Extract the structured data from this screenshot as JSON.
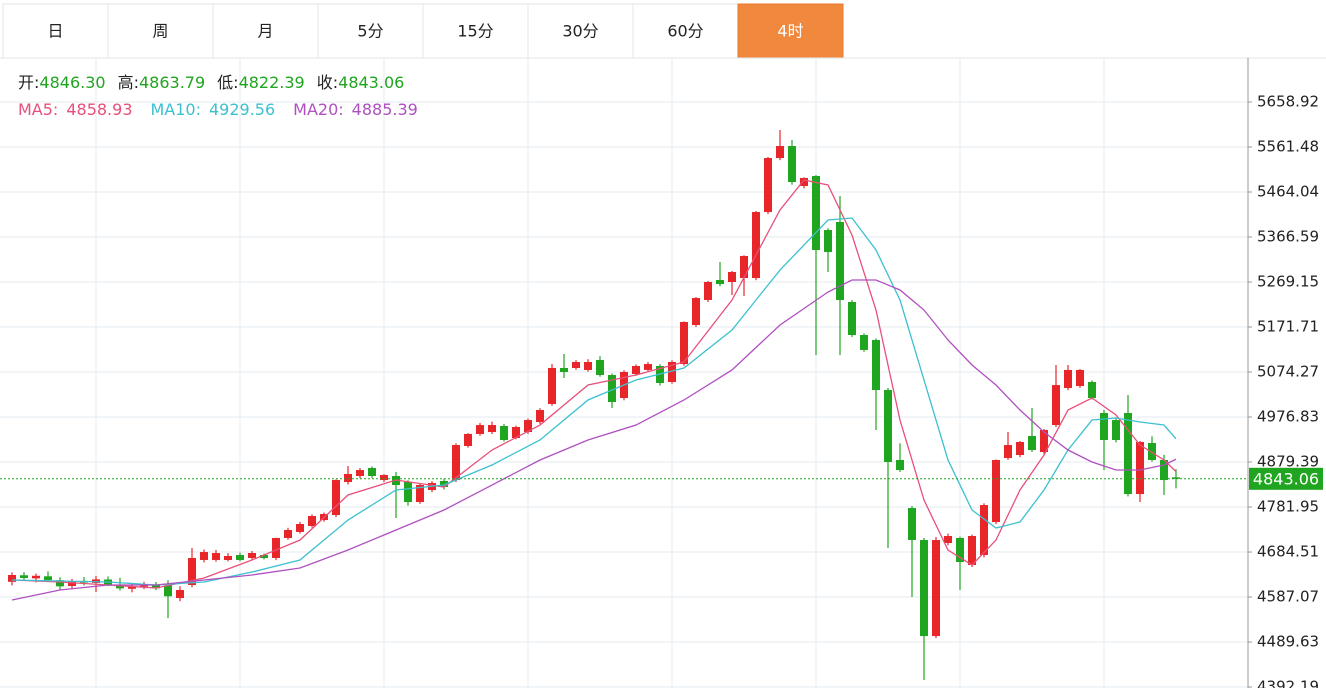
{
  "tabs": [
    "日",
    "周",
    "月",
    "5分",
    "15分",
    "30分",
    "60分",
    "4时"
  ],
  "active_tab": 7,
  "chart_data": {
    "type": "candlestick",
    "info": [
      {
        "label": "开:",
        "value": "4846.30"
      },
      {
        "label": "高:",
        "value": "4863.79"
      },
      {
        "label": "低:",
        "value": "4822.39"
      },
      {
        "label": "收:",
        "value": "4843.06"
      }
    ],
    "up_color": "#e8262a",
    "down_color": "#1fa51f",
    "candles": [
      [
        4620.0,
        4640.5,
        4612.3,
        4634.8
      ],
      [
        4634.2,
        4641.0,
        4624.5,
        4628.3
      ],
      [
        4627.5,
        4637.8,
        4618.9,
        4633.1
      ],
      [
        4632.0,
        4642.6,
        4620.3,
        4624.0
      ],
      [
        4623.5,
        4629.8,
        4602.5,
        4610.2
      ],
      [
        4611.0,
        4626.4,
        4604.8,
        4621.7
      ],
      [
        4622.0,
        4630.5,
        4612.1,
        4618.4
      ],
      [
        4617.6,
        4632.9,
        4598.0,
        4625.3
      ],
      [
        4625.0,
        4631.6,
        4610.8,
        4613.5
      ],
      [
        4614.0,
        4628.7,
        4601.2,
        4605.8
      ],
      [
        4604.9,
        4616.2,
        4597.3,
        4609.1
      ],
      [
        4609.5,
        4620.0,
        4604.0,
        4614.2
      ],
      [
        4613.8,
        4619.5,
        4602.1,
        4606.0
      ],
      [
        4612.5,
        4623.4,
        4541.6,
        4588.7
      ],
      [
        4584.9,
        4610.3,
        4578.0,
        4602.3
      ],
      [
        4613.1,
        4693.2,
        4608.0,
        4671.6
      ],
      [
        4667.3,
        4690.1,
        4662.0,
        4684.5
      ],
      [
        4667.3,
        4689.0,
        4663.5,
        4682.4
      ],
      [
        4667.3,
        4682.0,
        4664.1,
        4675.9
      ],
      [
        4678.1,
        4683.3,
        4664.4,
        4667.3
      ],
      [
        4671.6,
        4686.7,
        4668.0,
        4682.4
      ],
      [
        4678.1,
        4681.0,
        4668.5,
        4671.6
      ],
      [
        4671.6,
        4715.5,
        4667.0,
        4714.9
      ],
      [
        4714.9,
        4737.0,
        4711.0,
        4732.2
      ],
      [
        4727.9,
        4749.8,
        4724.5,
        4745.2
      ],
      [
        4740.9,
        4766.0,
        4737.5,
        4762.5
      ],
      [
        4753.8,
        4770.2,
        4750.0,
        4766.8
      ],
      [
        4764.7,
        4842.0,
        4760.0,
        4840.4
      ],
      [
        4836.1,
        4870.7,
        4830.5,
        4853.5
      ],
      [
        4849.1,
        4866.5,
        4844.0,
        4862.1
      ],
      [
        4866.5,
        4870.0,
        4845.0,
        4849.1
      ],
      [
        4840.4,
        4853.0,
        4836.0,
        4851.3
      ],
      [
        4849.1,
        4858.0,
        4758.2,
        4829.6
      ],
      [
        4836.1,
        4840.0,
        4785.0,
        4792.8
      ],
      [
        4792.8,
        4832.5,
        4789.0,
        4829.6
      ],
      [
        4818.8,
        4838.0,
        4814.0,
        4834.0
      ],
      [
        4838.3,
        4843.5,
        4820.0,
        4825.3
      ],
      [
        4840.4,
        4920.0,
        4836.0,
        4916.2
      ],
      [
        4914.1,
        4942.0,
        4910.5,
        4940.1
      ],
      [
        4940.1,
        4964.0,
        4936.5,
        4959.5
      ],
      [
        4944.4,
        4966.8,
        4940.0,
        4959.5
      ],
      [
        4957.4,
        4962.0,
        4924.0,
        4927.1
      ],
      [
        4931.4,
        4958.3,
        4928.5,
        4955.2
      ],
      [
        4944.4,
        4973.5,
        4940.0,
        4970.3
      ],
      [
        4966.0,
        4995.8,
        4962.0,
        4992.0
      ],
      [
        5005.0,
        5091.6,
        5001.0,
        5083.0
      ],
      [
        5083.0,
        5113.3,
        5061.3,
        5074.4
      ],
      [
        5083.0,
        5100.0,
        5079.0,
        5096.0
      ],
      [
        5078.7,
        5102.0,
        5075.0,
        5096.0
      ],
      [
        5100.3,
        5108.5,
        5064.0,
        5067.8
      ],
      [
        5067.8,
        5071.0,
        4996.3,
        5009.3
      ],
      [
        5018.0,
        5078.0,
        5013.0,
        5074.4
      ],
      [
        5070.0,
        5090.5,
        5066.0,
        5087.3
      ],
      [
        5078.7,
        5096.0,
        5075.0,
        5091.6
      ],
      [
        5087.3,
        5091.0,
        5045.0,
        5050.5
      ],
      [
        5052.7,
        5099.8,
        5049.0,
        5096.0
      ],
      [
        5091.6,
        5184.0,
        5088.0,
        5182.6
      ],
      [
        5176.1,
        5236.7,
        5172.0,
        5234.5
      ],
      [
        5230.2,
        5271.5,
        5226.0,
        5269.2
      ],
      [
        5273.5,
        5312.5,
        5260.0,
        5264.8
      ],
      [
        5269.2,
        5293.0,
        5241.0,
        5290.8
      ],
      [
        5277.8,
        5327.0,
        5238.8,
        5325.5
      ],
      [
        5277.8,
        5423.0,
        5273.0,
        5420.7
      ],
      [
        5420.7,
        5540.0,
        5416.0,
        5537.6
      ],
      [
        5537.6,
        5598.3,
        5533.0,
        5563.6
      ],
      [
        5563.6,
        5576.6,
        5480.0,
        5485.7
      ],
      [
        5477.1,
        5496.0,
        5472.0,
        5494.4
      ],
      [
        5498.7,
        5500.5,
        5111.1,
        5338.5
      ],
      [
        5381.8,
        5385.5,
        5290.8,
        5334.1
      ],
      [
        5399.1,
        5455.4,
        5111.1,
        5230.2
      ],
      [
        5225.9,
        5230.0,
        5150.0,
        5154.4
      ],
      [
        5154.4,
        5158.0,
        5118.0,
        5122.1
      ],
      [
        5143.6,
        5147.0,
        4948.7,
        5035.3
      ],
      [
        5035.3,
        5040.0,
        4693.2,
        4879.5
      ],
      [
        4883.8,
        4920.0,
        4858.0,
        4862.1
      ],
      [
        4779.8,
        4784.0,
        4587.1,
        4710.5
      ],
      [
        4710.5,
        4715.0,
        4407.3,
        4502.6
      ],
      [
        4502.6,
        4717.0,
        4498.0,
        4710.5
      ],
      [
        4704.0,
        4724.5,
        4699.0,
        4719.2
      ],
      [
        4714.9,
        4718.0,
        4602.3,
        4662.9
      ],
      [
        4656.4,
        4722.0,
        4652.0,
        4719.2
      ],
      [
        4678.1,
        4790.0,
        4673.0,
        4786.3
      ],
      [
        4749.5,
        4885.0,
        4745.0,
        4883.8
      ],
      [
        4888.1,
        4944.4,
        4884.0,
        4916.2
      ],
      [
        4894.6,
        4925.0,
        4890.0,
        4922.7
      ],
      [
        4935.7,
        4996.3,
        4901.0,
        4905.4
      ],
      [
        4901.1,
        4951.0,
        4897.0,
        4948.7
      ],
      [
        4959.5,
        5089.5,
        4955.0,
        5046.1
      ],
      [
        5039.6,
        5089.5,
        5035.0,
        5078.7
      ],
      [
        5044.0,
        5081.0,
        5040.0,
        5078.7
      ],
      [
        5052.7,
        5056.0,
        5015.0,
        5018.0
      ],
      [
        4985.5,
        4992.0,
        4862.1,
        4927.1
      ],
      [
        4970.3,
        4975.0,
        4922.0,
        4927.1
      ],
      [
        4985.5,
        5024.5,
        4805.0,
        4810.1
      ],
      [
        4810.1,
        4925.0,
        4792.8,
        4922.7
      ],
      [
        4920.6,
        4935.0,
        4880.0,
        4883.8
      ],
      [
        4883.8,
        4895.0,
        4808.0,
        4840.4
      ],
      [
        4846.3,
        4863.79,
        4822.39,
        4843.06
      ]
    ],
    "series": [
      {
        "name": "MA5:",
        "value_label": "4858.93",
        "color": "#e8507a",
        "x": [
          0,
          4,
          8,
          12,
          16,
          20,
          24,
          28,
          32,
          36,
          40,
          44,
          48,
          52,
          56,
          60,
          64,
          66,
          68,
          70,
          72,
          74,
          76,
          78,
          80,
          82,
          84,
          86,
          88,
          90,
          92,
          94,
          96,
          97
        ],
        "values": [
          4623.9,
          4619.6,
          4613.1,
          4606.6,
          4628.3,
          4667.3,
          4710.5,
          4808.0,
          4840.4,
          4825.3,
          4905.4,
          4959.5,
          5046.1,
          5067.8,
          5096.0,
          5230.2,
          5425.1,
          5490.0,
          5479.2,
          5370.9,
          5208.5,
          4970.3,
          4797.1,
          4688.9,
          4656.4,
          4710.5,
          4818.8,
          4894.6,
          4992.0,
          5018.0,
          4981.2,
          4916.2,
          4883.8,
          4858.93
        ]
      },
      {
        "name": "MA10:",
        "value_label": "4929.56",
        "color": "#3cc0d0",
        "x": [
          0,
          8,
          12,
          16,
          20,
          24,
          28,
          32,
          36,
          40,
          44,
          48,
          52,
          56,
          60,
          64,
          68,
          70,
          72,
          74,
          76,
          78,
          80,
          82,
          84,
          86,
          88,
          90,
          92,
          94,
          96,
          97
        ],
        "values": [
          4623.9,
          4619.6,
          4613.1,
          4619.6,
          4641.2,
          4667.3,
          4753.8,
          4818.8,
          4829.6,
          4872.9,
          4927.1,
          5013.7,
          5057.0,
          5083.0,
          5165.3,
          5295.1,
          5403.4,
          5407.7,
          5338.5,
          5230.2,
          5057.0,
          4883.8,
          4775.5,
          4736.5,
          4749.5,
          4818.8,
          4905.4,
          4970.3,
          4974.7,
          4966.0,
          4959.5,
          4929.56
        ]
      },
      {
        "name": "MA20:",
        "value_label": "4885.39",
        "color": "#b050c0",
        "x": [
          0,
          4,
          8,
          12,
          16,
          20,
          24,
          28,
          32,
          36,
          40,
          44,
          48,
          52,
          56,
          60,
          64,
          68,
          70,
          72,
          74,
          76,
          78,
          80,
          82,
          84,
          86,
          88,
          90,
          92,
          94,
          96,
          97
        ],
        "values": [
          4580.6,
          4602.3,
          4613.1,
          4613.1,
          4623.9,
          4634.8,
          4649.9,
          4688.9,
          4732.2,
          4775.5,
          4829.6,
          4883.8,
          4927.1,
          4959.5,
          5013.7,
          5078.7,
          5176.1,
          5247.5,
          5273.5,
          5273.5,
          5251.9,
          5208.5,
          5143.6,
          5089.5,
          5046.1,
          4992.0,
          4944.4,
          4905.4,
          4879.5,
          4862.1,
          4862.1,
          4872.9,
          4885.39
        ]
      }
    ],
    "last": 4843.06,
    "ylim": [
      4390.1,
      5754.2
    ],
    "yticks": [
      5658.92,
      5561.48,
      5464.04,
      5366.59,
      5269.15,
      5171.71,
      5074.27,
      4976.83,
      4879.39,
      4781.95,
      4684.51,
      4587.07,
      4489.63,
      4392.19
    ],
    "grid": true
  }
}
